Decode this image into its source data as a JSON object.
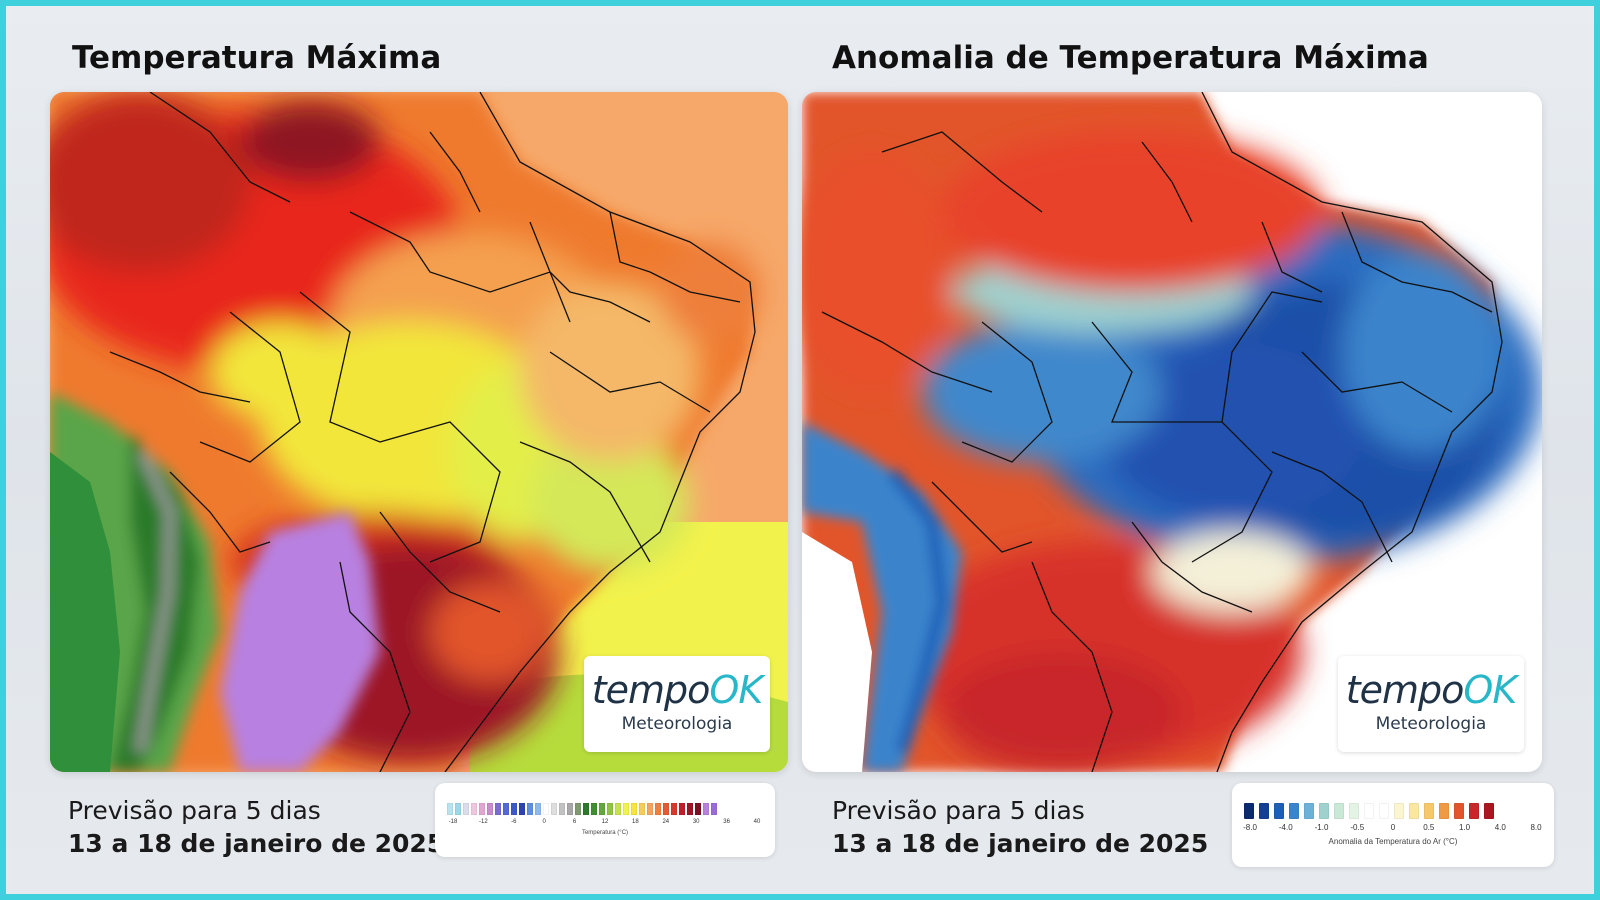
{
  "left": {
    "title": "Temperatura Máxima",
    "logo": {
      "brand_a": "tempo",
      "brand_b": "OK",
      "sub": "Meteorologia"
    },
    "caption": {
      "line1": "Previsão para 5 dias",
      "line2": "13 a 18 de janeiro de 2025"
    },
    "legend": {
      "label": "Temperatura (°C)",
      "ticks": [
        "-18",
        "-12",
        "-6",
        "0",
        "6",
        "12",
        "18",
        "24",
        "30",
        "36",
        "40"
      ],
      "colors": [
        "#b6e3f0",
        "#9ed7ea",
        "#dcdcec",
        "#f0c6df",
        "#e3a6d3",
        "#c98ad0",
        "#7b6bd6",
        "#5568d8",
        "#3b59c8",
        "#2b44b0",
        "#5d8fe0",
        "#8cb9ee",
        "#ffffff",
        "#dedede",
        "#c2c2c2",
        "#a8a8a8",
        "#7d9b6e",
        "#2a7a2a",
        "#3e8f2e",
        "#62a83a",
        "#8fc63d",
        "#c7e24a",
        "#f2f24c",
        "#f8e43c",
        "#f8cb5a",
        "#f7a35a",
        "#f08040",
        "#e65a30",
        "#d8382a",
        "#c01e28",
        "#9c1628",
        "#7a1020",
        "#b880e0",
        "#9a6cd8"
      ]
    }
  },
  "right": {
    "title": "Anomalia de Temperatura Máxima",
    "logo": {
      "brand_a": "tempo",
      "brand_b": "OK",
      "sub": "Meteorologia"
    },
    "caption": {
      "line1": "Previsão para 5 dias",
      "line2": "13 a 18 de janeiro de 2025"
    },
    "legend": {
      "label": "Anomalia da Temperatura do Ar (°C)",
      "ticks": [
        "-8.0",
        "-4.0",
        "-1.0",
        "-0.5",
        "0",
        "0.5",
        "1.0",
        "4.0",
        "8.0"
      ],
      "colors": [
        "#0a2a6e",
        "#123f93",
        "#1c5fb8",
        "#3a84cc",
        "#6cb2d8",
        "#9fd2cf",
        "#c9e9d6",
        "#e4f4e4",
        "#ffffff",
        "#ffffff",
        "#fbf6cf",
        "#f9e7a2",
        "#f6c86a",
        "#f09a44",
        "#e2552c",
        "#c8262a",
        "#a9161f"
      ]
    }
  }
}
